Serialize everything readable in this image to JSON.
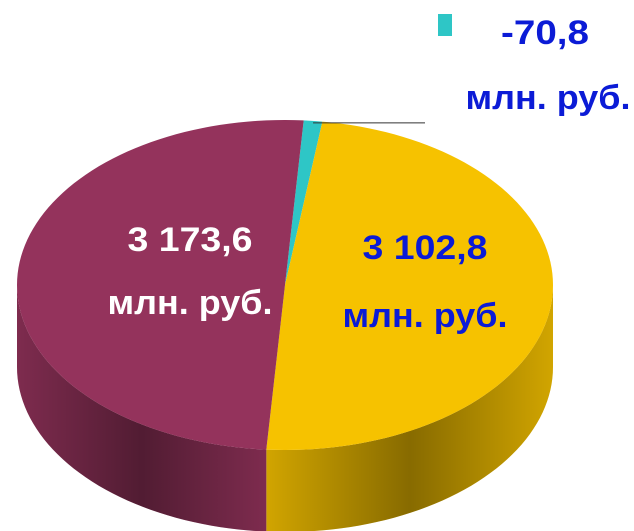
{
  "chart_data": {
    "type": "pie3d",
    "categories": [
      null,
      null,
      null
    ],
    "values": [
      3173.6,
      3102.8,
      -70.8
    ],
    "value_labels": [
      "3 173,6",
      "3 102,8",
      "-70,8"
    ],
    "unit": "млн. руб.",
    "colors": [
      "#94335c",
      "#f6c200",
      "#2ec6c6"
    ],
    "label_colors": [
      "#ffffff",
      "#0b1bd6",
      "#0b1bd6"
    ]
  }
}
